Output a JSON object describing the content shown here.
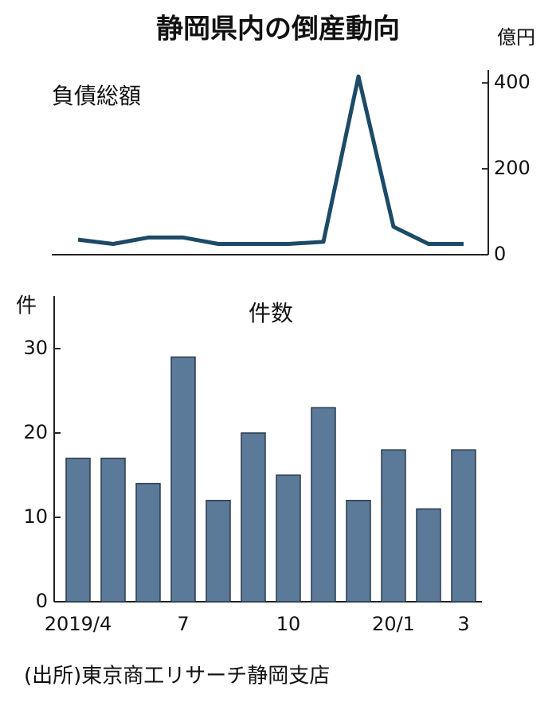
{
  "title": "静岡県内の倒産動向",
  "source": "(出所)東京商工リサーチ静岡支店",
  "chart_data": [
    {
      "type": "line",
      "title": "負債総額",
      "unit": "億円",
      "color": "#1d4a66",
      "values": [
        35,
        25,
        40,
        40,
        25,
        25,
        25,
        30,
        415,
        65,
        25,
        25
      ],
      "ylim": [
        0,
        430
      ],
      "yticks": [
        0,
        200,
        400
      ]
    },
    {
      "type": "bar",
      "title": "件数",
      "unit": "件",
      "color": "#5b7a99",
      "categories": [
        "2019/4",
        null,
        null,
        "7",
        null,
        null,
        "10",
        null,
        null,
        "20/1",
        null,
        "3"
      ],
      "values": [
        17,
        17,
        14,
        29,
        12,
        20,
        15,
        23,
        12,
        18,
        11,
        18
      ],
      "ylim": [
        0,
        36
      ],
      "yticks": [
        0,
        10,
        20,
        30
      ]
    }
  ]
}
